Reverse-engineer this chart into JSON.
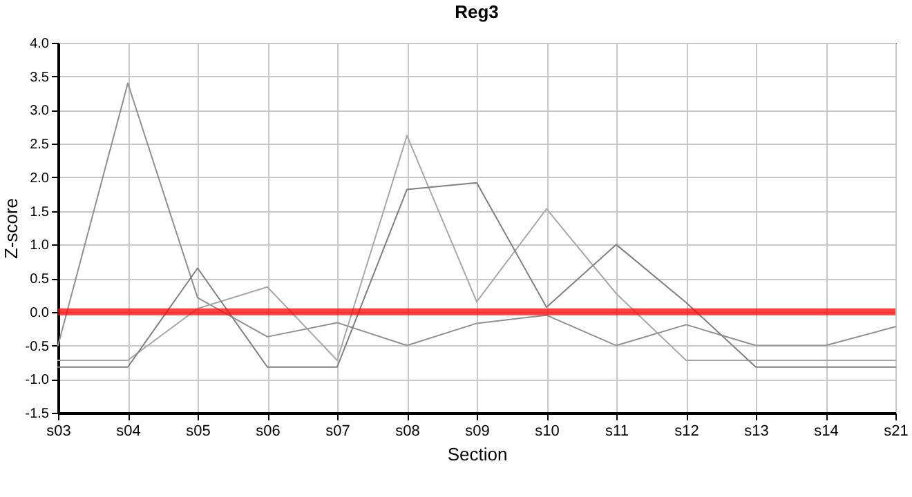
{
  "chart_data": {
    "type": "line",
    "title": "Reg3",
    "xlabel": "Section",
    "ylabel": "Z-score",
    "categories": [
      "s03",
      "s04",
      "s05",
      "s06",
      "s07",
      "s08",
      "s09",
      "s10",
      "s11",
      "s12",
      "s13",
      "s14",
      "s21"
    ],
    "series": [
      {
        "color": "#909090",
        "values": [
          -0.5,
          3.4,
          0.21,
          -0.37,
          -0.16,
          -0.5,
          -0.17,
          -0.05,
          -0.5,
          -0.19,
          -0.5,
          -0.5,
          -0.22
        ]
      },
      {
        "color": "#a8a8a8",
        "values": [
          -0.72,
          -0.72,
          0.05,
          0.37,
          -0.72,
          2.62,
          0.15,
          1.53,
          0.27,
          -0.72,
          -0.72,
          -0.72,
          -0.72
        ]
      },
      {
        "color": "#808080",
        "values": [
          -0.82,
          -0.82,
          0.65,
          -0.82,
          -0.82,
          1.82,
          1.92,
          0.07,
          1.0,
          0.14,
          -0.82,
          -0.82,
          -0.82
        ]
      }
    ],
    "ylim": [
      -1.5,
      4
    ],
    "yticks": [
      {
        "value": -1.5,
        "label": "-1.5"
      },
      {
        "value": -1,
        "label": "-1.0"
      },
      {
        "value": -0.5,
        "label": "-0.5"
      },
      {
        "value": 0,
        "label": "0.0"
      },
      {
        "value": 0.5,
        "label": "0.5"
      },
      {
        "value": 1,
        "label": "1.0"
      },
      {
        "value": 1.5,
        "label": "1.5"
      },
      {
        "value": 2,
        "label": "2.0"
      },
      {
        "value": 2.5,
        "label": "2.5"
      },
      {
        "value": 3,
        "label": "3.0"
      },
      {
        "value": 3.5,
        "label": "3.5"
      },
      {
        "value": 4,
        "label": "4.0"
      }
    ],
    "ref_lines": [
      {
        "axis": "y",
        "value": 0,
        "color": "#ff0000"
      }
    ],
    "grid": true,
    "marker": "none",
    "line_style": "solid"
  }
}
